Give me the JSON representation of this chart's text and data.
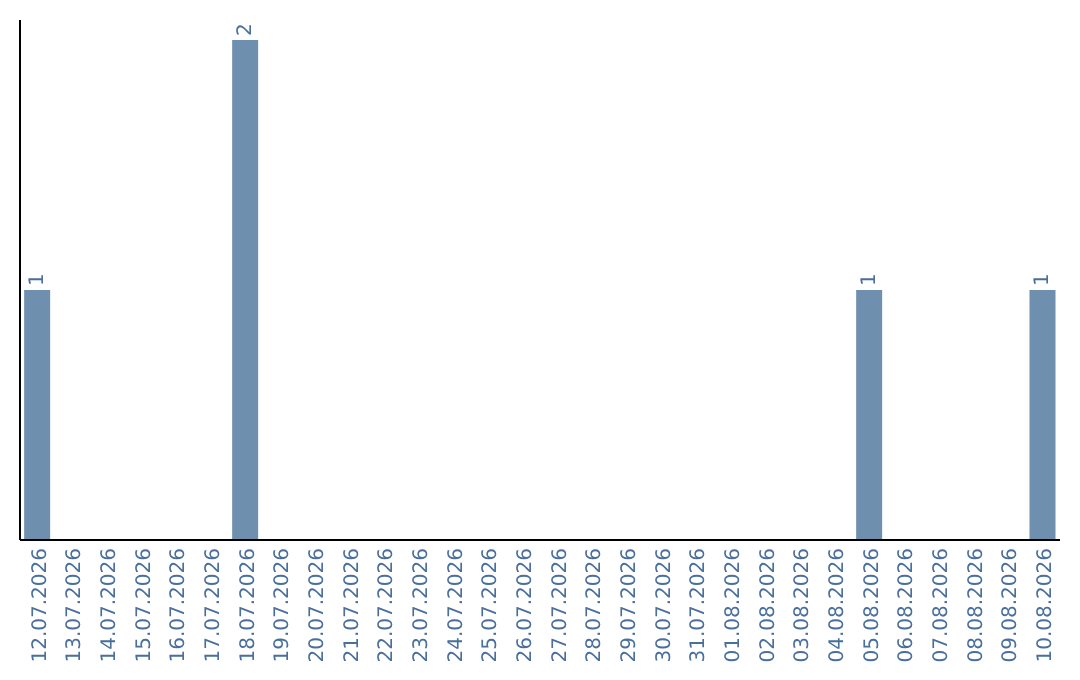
{
  "chart_data": {
    "type": "bar",
    "categories": [
      "12.07.2026",
      "13.07.2026",
      "14.07.2026",
      "15.07.2026",
      "16.07.2026",
      "17.07.2026",
      "18.07.2026",
      "19.07.2026",
      "20.07.2026",
      "21.07.2026",
      "22.07.2026",
      "23.07.2026",
      "24.07.2026",
      "25.07.2026",
      "26.07.2026",
      "27.07.2026",
      "28.07.2026",
      "29.07.2026",
      "30.07.2026",
      "31.07.2026",
      "01.08.2026",
      "02.08.2026",
      "03.08.2026",
      "04.08.2026",
      "05.08.2026",
      "06.08.2026",
      "07.08.2026",
      "08.08.2026",
      "09.08.2026",
      "10.08.2026"
    ],
    "values": [
      1,
      0,
      0,
      0,
      0,
      0,
      2,
      0,
      0,
      0,
      0,
      0,
      0,
      0,
      0,
      0,
      0,
      0,
      0,
      0,
      0,
      0,
      0,
      0,
      1,
      0,
      0,
      0,
      0,
      1
    ],
    "value_labels": [
      "1",
      null,
      null,
      null,
      null,
      null,
      "2",
      null,
      null,
      null,
      null,
      null,
      null,
      null,
      null,
      null,
      null,
      null,
      null,
      null,
      null,
      null,
      null,
      null,
      "1",
      null,
      null,
      null,
      null,
      "1"
    ],
    "color": "#6f8fae",
    "tick_labels": "x",
    "grid": false,
    "legend": false
  }
}
